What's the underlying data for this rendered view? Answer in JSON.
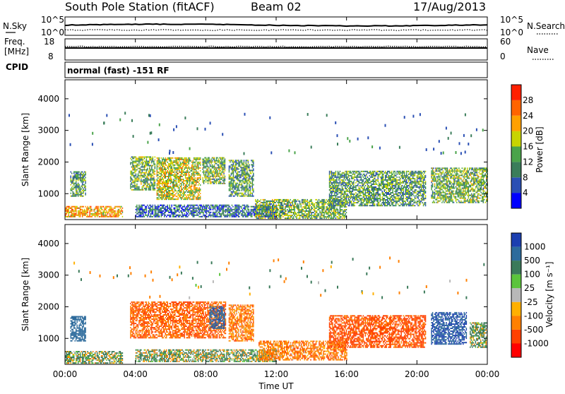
{
  "header": {
    "title": "South Pole Station (fitACF)",
    "beam": "Beam 02",
    "date": "17/Aug/2013"
  },
  "noise_panel": {
    "left_label": "N.Sky",
    "right_label": "N.Search",
    "left_ticks": [
      "10^5",
      "10^0"
    ],
    "right_ticks": [
      "10^5",
      "10^0"
    ]
  },
  "freq_panel": {
    "left_label_1": "Freq.",
    "left_label_2": "[MHz]",
    "left_ticks": [
      "18",
      "8"
    ],
    "right_label": "Nave",
    "right_ticks": [
      "60",
      "0"
    ]
  },
  "cpid_panel": {
    "label": "CPID",
    "text": "normal (fast) -151 RF"
  },
  "power_panel": {
    "ylabel": "Slant Range [km]",
    "yticks": [
      "4000",
      "3000",
      "2000",
      "1000"
    ],
    "colorbar_label": "Power [dB]",
    "colorbar_ticks": [
      "28",
      "24",
      "20",
      "16",
      "12",
      "8",
      "4"
    ],
    "colors": [
      "#0000ff",
      "#2a4fb4",
      "#3a7d5a",
      "#4aa34a",
      "#c8d400",
      "#ffa000",
      "#ff6400",
      "#ff2000"
    ]
  },
  "velocity_panel": {
    "ylabel": "Slant Range [km]",
    "yticks": [
      "4000",
      "3000",
      "2000",
      "1000"
    ],
    "colorbar_label": "Velocity [m s⁻¹]",
    "colorbar_ticks": [
      "1000",
      "500",
      "100",
      "25",
      "-25",
      "-100",
      "-500",
      "-1000"
    ],
    "colors": [
      "#1c3fb0",
      "#2d6b9c",
      "#3b7a5a",
      "#5cc43c",
      "#b8b8b8",
      "#ffb000",
      "#ff8000",
      "#ff4000",
      "#ff0000"
    ]
  },
  "x_axis": {
    "label": "Time UT",
    "ticks": [
      "00:00",
      "04:00",
      "08:00",
      "12:00",
      "16:00",
      "20:00",
      "00:00"
    ]
  },
  "chart_data": [
    {
      "type": "heatmap",
      "title": "Power",
      "xlabel": "Time UT",
      "ylabel": "Slant Range [km]",
      "x_range_hours": [
        0,
        24
      ],
      "ylim": [
        180,
        4600
      ],
      "colorbar": "Power [dB]",
      "scale_range": [
        0,
        32
      ],
      "regions": [
        {
          "t0": 0.0,
          "t1": 3.3,
          "r0": 250,
          "r1": 600,
          "level": 22
        },
        {
          "t0": 0.3,
          "t1": 1.2,
          "r0": 900,
          "r1": 1700,
          "level": 12
        },
        {
          "t0": 3.7,
          "t1": 5.1,
          "r0": 1100,
          "r1": 2150,
          "level": 14
        },
        {
          "t0": 5.2,
          "t1": 7.7,
          "r0": 800,
          "r1": 2150,
          "level": 18
        },
        {
          "t0": 7.8,
          "t1": 9.1,
          "r0": 1300,
          "r1": 2150,
          "level": 14
        },
        {
          "t0": 9.3,
          "t1": 10.7,
          "r0": 900,
          "r1": 2050,
          "level": 12
        },
        {
          "t0": 4.0,
          "t1": 12.0,
          "r0": 250,
          "r1": 650,
          "level": 8
        },
        {
          "t0": 10.8,
          "t1": 16.0,
          "r0": 200,
          "r1": 800,
          "level": 14
        },
        {
          "t0": 15.0,
          "t1": 20.5,
          "r0": 600,
          "r1": 1700,
          "level": 12
        },
        {
          "t0": 20.8,
          "t1": 24.0,
          "r0": 700,
          "r1": 1800,
          "level": 14
        }
      ]
    },
    {
      "type": "heatmap",
      "title": "Velocity",
      "xlabel": "Time UT",
      "ylabel": "Slant Range [km]",
      "x_range_hours": [
        0,
        24
      ],
      "ylim": [
        180,
        4600
      ],
      "colorbar": "Velocity [m s⁻¹]",
      "scale_ticks": [
        1000,
        500,
        100,
        25,
        -25,
        -100,
        -500,
        -1000
      ],
      "regions": [
        {
          "t0": 0.0,
          "t1": 3.3,
          "r0": 200,
          "r1": 600,
          "level": 100
        },
        {
          "t0": 0.3,
          "t1": 1.2,
          "r0": 900,
          "r1": 1700,
          "level": 500
        },
        {
          "t0": 3.7,
          "t1": 9.1,
          "r0": 1000,
          "r1": 2150,
          "level": -300
        },
        {
          "t0": 8.2,
          "t1": 9.1,
          "r0": 1300,
          "r1": 2000,
          "level": 700
        },
        {
          "t0": 9.3,
          "t1": 10.7,
          "r0": 900,
          "r1": 2050,
          "level": -200
        },
        {
          "t0": 4.0,
          "t1": 12.0,
          "r0": 250,
          "r1": 650,
          "level": 80
        },
        {
          "t0": 11.0,
          "t1": 16.0,
          "r0": 300,
          "r1": 900,
          "level": -200
        },
        {
          "t0": 15.0,
          "t1": 20.5,
          "r0": 700,
          "r1": 1700,
          "level": -400
        },
        {
          "t0": 20.8,
          "t1": 22.8,
          "r0": 800,
          "r1": 1800,
          "level": 800
        },
        {
          "t0": 23.0,
          "t1": 24.0,
          "r0": 700,
          "r1": 1500,
          "level": 100
        }
      ]
    }
  ]
}
